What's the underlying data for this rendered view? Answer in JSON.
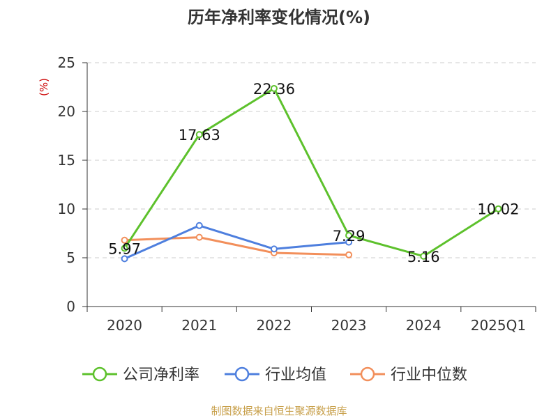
{
  "chart_data": {
    "type": "line",
    "title": "历年净利率变化情况(%)",
    "ylabel": "(%)",
    "categories": [
      "2020",
      "2021",
      "2022",
      "2023",
      "2024",
      "2025Q1"
    ],
    "ylim": [
      0,
      25
    ],
    "yticks": [
      0,
      5,
      10,
      15,
      20,
      25
    ],
    "grid": true,
    "legend_position": "bottom",
    "series": [
      {
        "name": "公司净利率",
        "color": "#5dc12c",
        "values": [
          5.97,
          17.63,
          22.36,
          7.29,
          5.16,
          10.02
        ],
        "labels": [
          "5.97",
          "17.63",
          "22.36",
          "7.29",
          "5.16",
          "10.02"
        ]
      },
      {
        "name": "行业均值",
        "color": "#4e7fde",
        "values": [
          4.9,
          8.3,
          5.9,
          6.6,
          null,
          null
        ]
      },
      {
        "name": "行业中位数",
        "color": "#f28f5b",
        "values": [
          6.8,
          7.1,
          5.5,
          5.3,
          null,
          null
        ]
      }
    ]
  },
  "footer": {
    "source": "制图数据来自恒生聚源数据库",
    "color": "#c8a04b"
  },
  "colors": {
    "ylabel": "#cc0000",
    "grid": "#cccccc",
    "axis": "#333333"
  }
}
